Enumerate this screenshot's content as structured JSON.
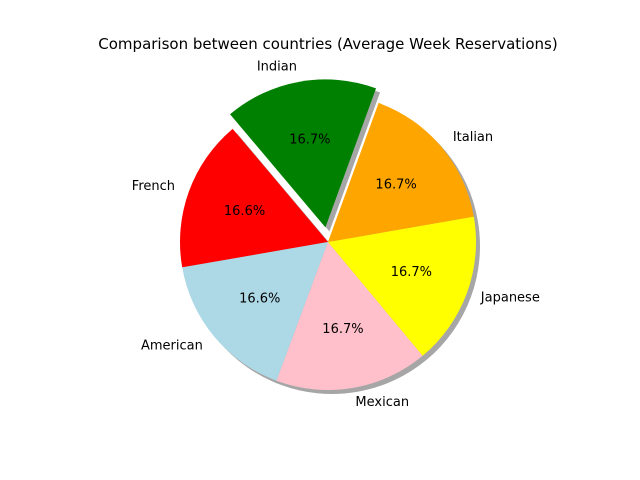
{
  "chart_data": {
    "type": "pie",
    "title": "Comparison between countries (Average Week Reservations)",
    "labels": [
      "Indian",
      "French",
      "American",
      "Mexican",
      "Japanese",
      "Italian"
    ],
    "values": [
      16.7,
      16.6,
      16.6,
      16.7,
      16.7,
      16.7
    ],
    "percent_labels": [
      "16.7%",
      "16.6%",
      "16.6%",
      "16.7%",
      "16.7%",
      "16.7%"
    ],
    "colors": [
      "#008000",
      "#ff0000",
      "#add8e6",
      "#ffc0cb",
      "#ffff00",
      "#ffa500"
    ],
    "exploded": [
      "Indian"
    ],
    "shadow": true,
    "legend": "none"
  }
}
